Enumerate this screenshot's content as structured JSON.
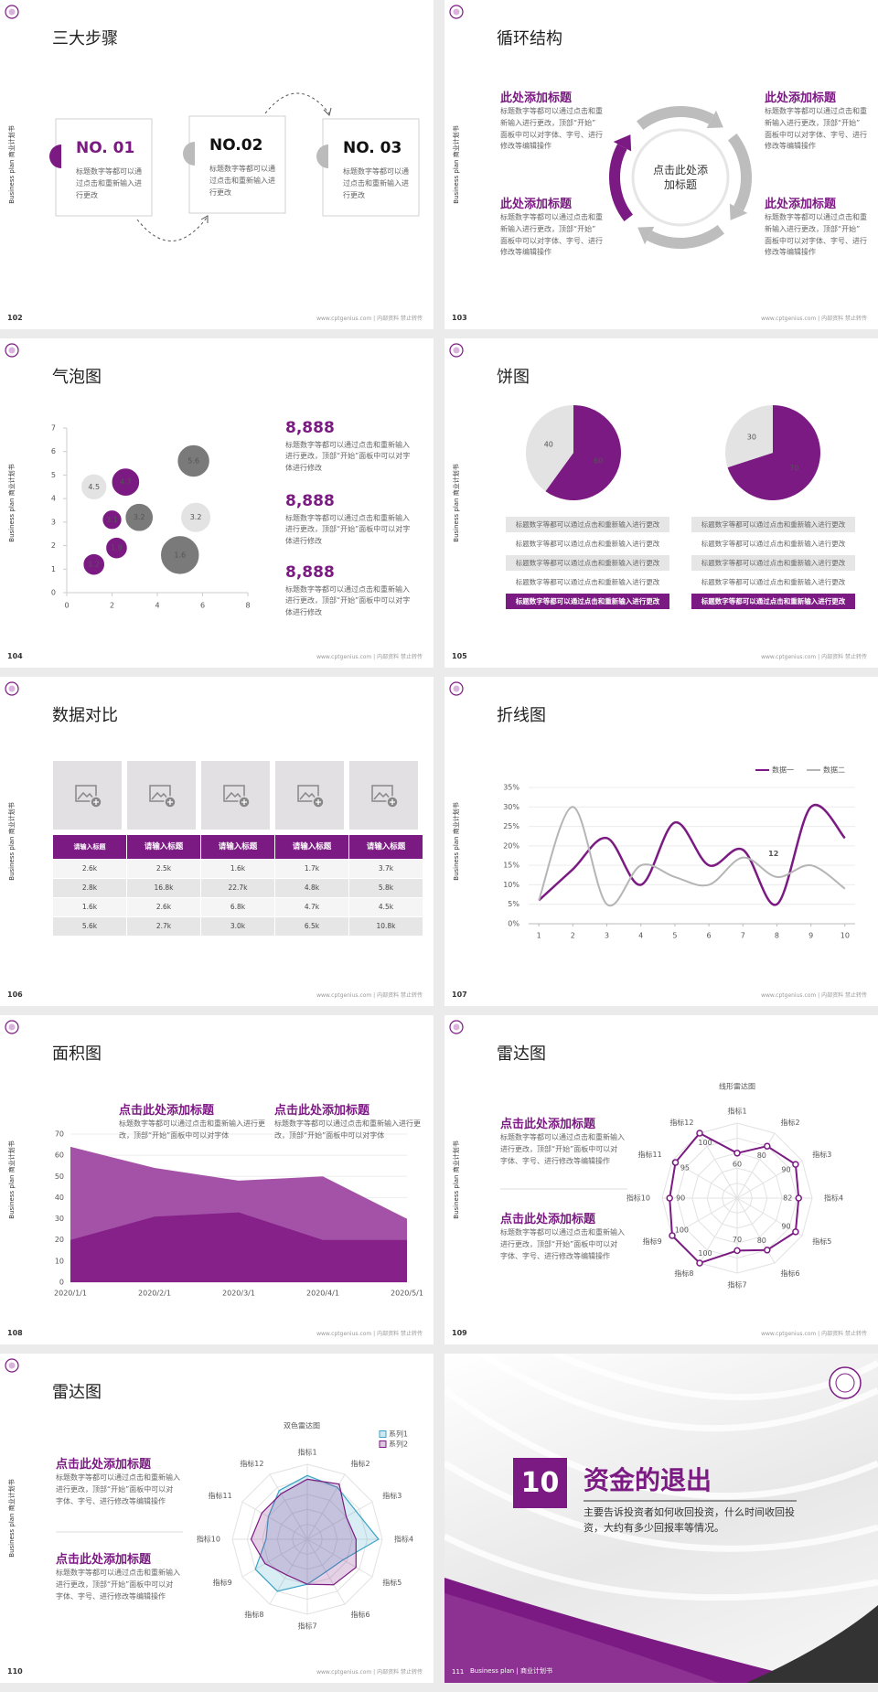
{
  "side_label": "Business plan 商业计划书",
  "footer": "www.cptgenius.com | 内部资料 禁止转传",
  "slides": [
    {
      "page": 102,
      "title": "三大步骤",
      "steps": [
        {
          "label": "NO. 01",
          "text": "标题数字等都可以通过点击和重新输入进行更改"
        },
        {
          "label": "NO.02",
          "text": "标题数字等都可以通过点击和重新输入进行更改"
        },
        {
          "label": "NO. 03",
          "text": "标题数字等都可以通过点击和重新输入进行更改"
        }
      ]
    },
    {
      "page": 103,
      "title": "循环结构",
      "center": "点击此处添加标题",
      "blocks": [
        {
          "title": "此处添加标题",
          "text": "标题数字等都可以通过点击和重新输入进行更改，顶部“开始”面板中可以对字体、字号、进行修改等编辑操作"
        },
        {
          "title": "此处添加标题",
          "text": "标题数字等都可以通过点击和重新输入进行更改，顶部“开始”面板中可以对字体、字号、进行修改等编辑操作"
        },
        {
          "title": "此处添加标题",
          "text": "标题数字等都可以通过点击和重新输入进行更改，顶部“开始”面板中可以对字体、字号、进行修改等编辑操作"
        },
        {
          "title": "此处添加标题",
          "text": "标题数字等都可以通过点击和重新输入进行更改，顶部“开始”面板中可以对字体、字号、进行修改等编辑操作"
        }
      ]
    },
    {
      "page": 104,
      "title": "气泡图",
      "chart": {
        "type": "scatter",
        "xlim": [
          0,
          8
        ],
        "xticks": [
          0,
          2,
          4,
          6,
          8
        ],
        "ylim": [
          0,
          7
        ],
        "yticks": [
          0,
          1,
          2,
          3,
          4,
          5,
          6,
          7
        ],
        "points": {
          "x": [
            1.2,
            2.6,
            5.6,
            2.0,
            3.2,
            5.7,
            2.2,
            1.2,
            5.0
          ],
          "y": [
            4.5,
            4.7,
            5.6,
            3.1,
            3.2,
            3.2,
            1.9,
            1.2,
            1.6
          ],
          "size": [
            12,
            13,
            15,
            9,
            13,
            14,
            10,
            10,
            18
          ],
          "colors": [
            "#e3e3e3",
            "#7b1a82",
            "#7a7a7a",
            "#7b1a82",
            "#7a7a7a",
            "#e3e3e3",
            "#7b1a82",
            "#7b1a82",
            "#7a7a7a"
          ]
        }
      },
      "stats": [
        {
          "value": "8,888",
          "text": "标题数字等都可以通过点击和重新输入进行更改，顶部“开始”面板中可以对字体进行修改"
        },
        {
          "value": "8,888",
          "text": "标题数字等都可以通过点击和重新输入进行更改，顶部“开始”面板中可以对字体进行修改"
        },
        {
          "value": "8,888",
          "text": "标题数字等都可以通过点击和重新输入进行更改，顶部“开始”面板中可以对字体进行修改"
        }
      ]
    },
    {
      "page": 105,
      "title": "饼图",
      "pies": [
        {
          "values": [
            60,
            40
          ],
          "colors": [
            "#7b1a82",
            "#e3e3e3"
          ],
          "rows": [
            "标题数字等都可以通过点击和重新输入进行更改",
            "标题数字等都可以通过点击和重新输入进行更改",
            "标题数字等都可以通过点击和重新输入进行更改",
            "标题数字等都可以通过点击和重新输入进行更改",
            "标题数字等都可以通过点击和重新输入进行更改"
          ]
        },
        {
          "values": [
            70,
            30
          ],
          "colors": [
            "#7b1a82",
            "#e3e3e3"
          ],
          "rows": [
            "标题数字等都可以通过点击和重新输入进行更改",
            "标题数字等都可以通过点击和重新输入进行更改",
            "标题数字等都可以通过点击和重新输入进行更改",
            "标题数字等都可以通过点击和重新输入进行更改",
            "标题数字等都可以通过点击和重新输入进行更改"
          ]
        }
      ]
    },
    {
      "page": 106,
      "title": "数据对比",
      "table": {
        "header": [
          "请输入标题",
          "请输入标题",
          "请输入标题",
          "请输入标题",
          "请输入标题"
        ],
        "rows": [
          [
            "2.6k",
            "2.5k",
            "1.6k",
            "1.7k",
            "3.7k"
          ],
          [
            "2.8k",
            "16.8k",
            "22.7k",
            "4.8k",
            "5.8k"
          ],
          [
            "1.6k",
            "2.6k",
            "6.8k",
            "4.7k",
            "4.5k"
          ],
          [
            "5.6k",
            "2.7k",
            "3.0k",
            "6.5k",
            "10.8k"
          ]
        ]
      }
    },
    {
      "page": 107,
      "title": "折线图",
      "chart": {
        "type": "line",
        "x": [
          1,
          2,
          3,
          4,
          5,
          6,
          7,
          8,
          9,
          10
        ],
        "xlim": [
          0.7,
          10.3
        ],
        "xticks": [
          1,
          2,
          3,
          4,
          5,
          6,
          7,
          8,
          9,
          10
        ],
        "ylim": [
          0,
          35
        ],
        "yticks": [
          {
            "value": 0,
            "label": "0%"
          },
          {
            "value": 5,
            "label": "5%"
          },
          {
            "value": 10,
            "label": "10%"
          },
          {
            "value": 15,
            "label": "15%"
          },
          {
            "value": 20,
            "label": "20%"
          },
          {
            "value": 25,
            "label": "25%"
          },
          {
            "value": 30,
            "label": "30%"
          },
          {
            "value": 35,
            "label": "35%"
          }
        ],
        "grid": true,
        "legend": "top-right",
        "annotation": "12",
        "series": [
          {
            "name": "数据一",
            "color": "#7b1a82",
            "values": [
              6,
              14,
              22,
              10,
              26,
              15,
              19,
              5,
              30,
              22
            ]
          },
          {
            "name": "数据二",
            "color": "#b5b5b5",
            "values": [
              6,
              30,
              5,
              15,
              12,
              10,
              17,
              12,
              15,
              9
            ]
          }
        ]
      }
    },
    {
      "page": 108,
      "title": "面积图",
      "blocks": [
        {
          "title": "点击此处添加标题",
          "text": "标题数字等都可以通过点击和重新输入进行更改，顶部“开始”面板中可以对字体"
        },
        {
          "title": "点击此处添加标题",
          "text": "标题数字等都可以通过点击和重新输入进行更改，顶部“开始”面板中可以对字体"
        }
      ],
      "chart": {
        "type": "area",
        "categories": [
          "2020/1/1",
          "2020/2/1",
          "2020/3/1",
          "2020/4/1",
          "2020/5/1"
        ],
        "ylim": [
          0,
          70
        ],
        "yticks": [
          0,
          10,
          20,
          30,
          40,
          50,
          60,
          70
        ],
        "series": [
          {
            "color": "#a452a8",
            "values": [
              64,
              54,
              48,
              50,
              30
            ]
          },
          {
            "color": "#852189",
            "values": [
              20,
              31,
              33,
              20,
              20
            ]
          }
        ]
      }
    },
    {
      "page": 109,
      "title": "雷达图",
      "blocks": [
        {
          "title": "点击此处添加标题",
          "text": "标题数字等都可以通过点击和重新输入进行更改，顶部“开始”面板中可以对字体、字号、进行修改等编辑操作"
        },
        {
          "title": "点击此处添加标题",
          "text": "标题数字等都可以通过点击和重新输入进行更改，顶部“开始”面板中可以对字体、字号、进行修改等编辑操作"
        }
      ],
      "chart": {
        "type": "radar",
        "title": "线形雷达图",
        "categories": [
          "指标1",
          "指标2",
          "指标3",
          "指标4",
          "指标5",
          "指标6",
          "指标7",
          "指标8",
          "指标9",
          "指标10",
          "指标11",
          "指标12"
        ],
        "rlim": [
          0,
          100
        ],
        "filled": false,
        "markers": true,
        "data_labels": true,
        "series": [
          {
            "color": "#7b1a82",
            "values": [
              60,
              80,
              90,
              82,
              90,
              80,
              70,
              100,
              100,
              90,
              95,
              100
            ]
          }
        ]
      }
    },
    {
      "page": 110,
      "title": "雷达图",
      "blocks": [
        {
          "title": "点击此处添加标题",
          "text": "标题数字等都可以通过点击和重新输入进行更改，顶部“开始”面板中可以对字体、字号、进行修改等编辑操作"
        },
        {
          "title": "点击此处添加标题",
          "text": "标题数字等都可以通过点击和重新输入进行更改，顶部“开始”面板中可以对字体、字号、进行修改等编辑操作"
        }
      ],
      "chart": {
        "type": "radar",
        "title": "双色雷达图",
        "categories": [
          "指标1",
          "指标2",
          "指标3",
          "指标4",
          "指标5",
          "指标6",
          "指标7",
          "指标8",
          "指标9",
          "指标10",
          "指标11",
          "指标12"
        ],
        "rlim": [
          0,
          100
        ],
        "filled": true,
        "markers": false,
        "data_labels": false,
        "legend": "top-right",
        "series": [
          {
            "name": "系列1",
            "color": "#3ba3c6",
            "values": [
              85,
              80,
              75,
              95,
              55,
              50,
              60,
              80,
              80,
              55,
              60,
              75
            ]
          },
          {
            "name": "系列2",
            "color": "#7b1a82",
            "values": [
              80,
              85,
              60,
              65,
              75,
              70,
              60,
              55,
              65,
              75,
              70,
              70
            ]
          }
        ]
      }
    },
    {
      "page": 111,
      "number": 10,
      "title": "资金的退出",
      "text": "主要告诉投资者如何收回投资，什么时间收回投资，大约有多少回报率等情况。",
      "footer": "Business plan | 商业计划书"
    }
  ]
}
